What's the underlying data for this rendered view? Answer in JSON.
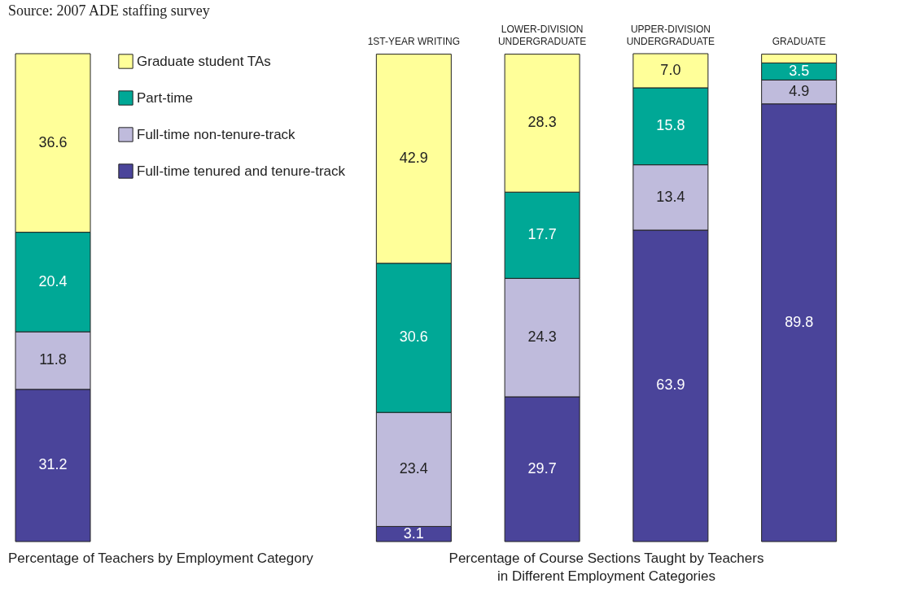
{
  "chart_data": [
    {
      "type": "bar",
      "stacked": true,
      "legend": "right",
      "xlabel": "Percentage of Teachers by Employment Category",
      "annotations": [
        "Source: 2007 ADE staffing survey"
      ],
      "categories": [
        null
      ],
      "series": [
        {
          "name": "Full-time tenured and tenure-track",
          "color": "#4a449a",
          "values": [
            31.2
          ],
          "value_labels": [
            "31.2"
          ]
        },
        {
          "name": "Full-time non-tenure-track",
          "color": "#bfbbdc",
          "values": [
            11.8
          ],
          "value_labels": [
            "11.8"
          ]
        },
        {
          "name": "Part-time",
          "color": "#00a896",
          "values": [
            20.4
          ],
          "value_labels": [
            "20.4"
          ]
        },
        {
          "name": "Graduate student TAs",
          "color": "#ffff99",
          "values": [
            36.6
          ],
          "value_labels": [
            "36.6"
          ]
        }
      ]
    },
    {
      "type": "bar",
      "stacked": true,
      "xlabel": "Percentage of Course Sections Taught by Teachers in Different Employment Categories",
      "categories": [
        "1ST-YEAR WRITING",
        "LOWER-DIVISION UNDERGRADUATE",
        "UPPER-DIVISION UNDERGRADUATE",
        "GRADUATE"
      ],
      "series": [
        {
          "color": "#4a449a",
          "values": [
            3.1,
            29.7,
            63.9,
            89.8
          ],
          "value_labels": [
            "3.1",
            "29.7",
            "63.9",
            "89.8"
          ]
        },
        {
          "color": "#bfbbdc",
          "values": [
            23.4,
            24.3,
            13.4,
            4.9
          ],
          "value_labels": [
            "23.4",
            "24.3",
            "13.4",
            "4.9"
          ]
        },
        {
          "color": "#00a896",
          "values": [
            30.6,
            17.7,
            15.8,
            3.5
          ],
          "value_labels": [
            "30.6",
            "17.7",
            "15.8",
            "3.5"
          ]
        },
        {
          "color": "#ffff99",
          "values": [
            42.9,
            28.3,
            7.0,
            1.8
          ],
          "value_labels": [
            "42.9",
            "28.3",
            "7.0",
            null
          ]
        }
      ]
    }
  ]
}
